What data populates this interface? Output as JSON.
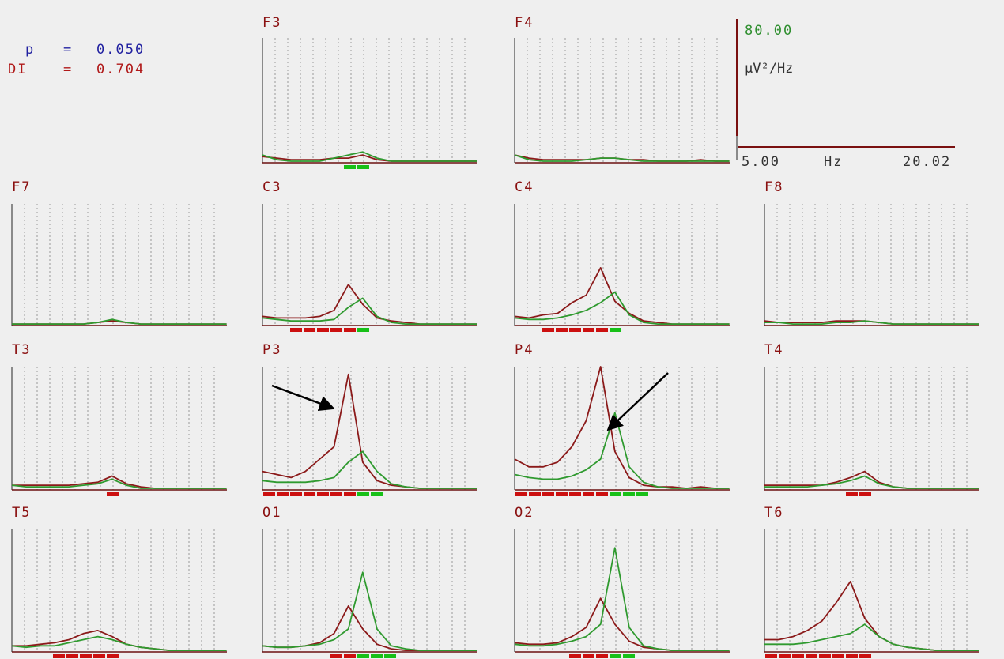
{
  "stats": {
    "p_label": "p",
    "p_equals": "=",
    "p_value": "0.050",
    "di_label": "DI",
    "di_equals": "=",
    "di_value": "0.704"
  },
  "scale": {
    "max_value": "80.00",
    "unit": "µV²/Hz",
    "x_min_label": "5.00",
    "x_unit": "Hz",
    "x_max_label": "20.02"
  },
  "colors": {
    "background": "#efefef",
    "series_a": "#8b1a1a",
    "series_b": "#2f9a2f",
    "significant_a": "#cc1010",
    "significant_b": "#18c018",
    "grid": "#9a9a9a",
    "axis": "#6b1010",
    "arrow": "#000000"
  },
  "chart_data": {
    "type": "line",
    "x": [
      5,
      6,
      7,
      8,
      9,
      10,
      11,
      12,
      13,
      14,
      15,
      16,
      17,
      18,
      19,
      20
    ],
    "xlim": [
      5.0,
      20.02
    ],
    "ylim": [
      0,
      80
    ],
    "xlabel": "Hz",
    "ylabel": "µV²/Hz",
    "grid": true,
    "panels": [
      {
        "label": "F3",
        "series": [
          {
            "values": [
              4,
              3,
              2,
              2,
              2,
              3,
              3,
              5,
              2,
              1,
              1,
              1,
              1,
              1,
              1,
              1
            ]
          },
          {
            "values": [
              5,
              2,
              1,
              1,
              1,
              3,
              5,
              7,
              3,
              1,
              1,
              1,
              1,
              1,
              1,
              1
            ]
          }
        ]
      },
      {
        "label": "F4",
        "series": [
          {
            "values": [
              5,
              3,
              2,
              2,
              2,
              2,
              3,
              3,
              2,
              2,
              1,
              1,
              1,
              2,
              1,
              1
            ]
          },
          {
            "values": [
              5,
              2,
              1,
              1,
              1,
              2,
              3,
              3,
              2,
              1,
              1,
              1,
              1,
              1,
              1,
              1
            ]
          }
        ]
      },
      {
        "label": "F7",
        "series": [
          {
            "values": [
              1,
              1,
              1,
              1,
              1,
              1,
              2,
              3,
              2,
              1,
              1,
              1,
              1,
              1,
              1,
              1
            ]
          },
          {
            "values": [
              1,
              1,
              1,
              1,
              1,
              1,
              2,
              4,
              2,
              1,
              1,
              1,
              1,
              1,
              1,
              1
            ]
          }
        ]
      },
      {
        "label": "C3",
        "series": [
          {
            "values": [
              6,
              5,
              5,
              5,
              6,
              10,
              27,
              14,
              5,
              3,
              2,
              1,
              1,
              1,
              1,
              1
            ]
          },
          {
            "values": [
              5,
              4,
              3,
              3,
              3,
              4,
              12,
              18,
              6,
              2,
              1,
              1,
              1,
              1,
              1,
              1
            ]
          }
        ]
      },
      {
        "label": "C4",
        "series": [
          {
            "values": [
              6,
              5,
              7,
              8,
              15,
              20,
              38,
              16,
              8,
              3,
              2,
              1,
              1,
              1,
              1,
              1
            ]
          },
          {
            "values": [
              5,
              4,
              4,
              5,
              7,
              10,
              15,
              22,
              7,
              2,
              1,
              1,
              1,
              1,
              1,
              1
            ]
          }
        ]
      },
      {
        "label": "F8",
        "series": [
          {
            "values": [
              3,
              2,
              2,
              2,
              2,
              3,
              3,
              3,
              2,
              1,
              1,
              1,
              1,
              1,
              1,
              1
            ]
          },
          {
            "values": [
              2,
              2,
              1,
              1,
              1,
              2,
              2,
              3,
              2,
              1,
              1,
              1,
              1,
              1,
              1,
              1
            ]
          }
        ]
      },
      {
        "label": "T3",
        "series": [
          {
            "values": [
              3,
              3,
              3,
              3,
              3,
              4,
              5,
              9,
              4,
              2,
              1,
              1,
              1,
              1,
              1,
              1
            ]
          },
          {
            "values": [
              3,
              2,
              2,
              2,
              2,
              3,
              4,
              7,
              3,
              1,
              1,
              1,
              1,
              1,
              1,
              1
            ]
          }
        ]
      },
      {
        "label": "P3",
        "series": [
          {
            "values": [
              12,
              10,
              8,
              12,
              20,
              28,
              75,
              18,
              6,
              3,
              2,
              1,
              1,
              1,
              1,
              1
            ]
          },
          {
            "values": [
              6,
              5,
              5,
              5,
              6,
              8,
              18,
              25,
              12,
              4,
              2,
              1,
              1,
              1,
              1,
              1
            ]
          }
        ]
      },
      {
        "label": "P4",
        "series": [
          {
            "values": [
              20,
              15,
              15,
              18,
              28,
              45,
              80,
              25,
              8,
              3,
              2,
              2,
              1,
              2,
              1,
              1
            ]
          },
          {
            "values": [
              10,
              8,
              7,
              7,
              9,
              13,
              20,
              50,
              15,
              5,
              2,
              1,
              1,
              1,
              1,
              1
            ]
          }
        ]
      },
      {
        "label": "T4",
        "series": [
          {
            "values": [
              3,
              3,
              3,
              3,
              3,
              5,
              8,
              12,
              5,
              2,
              1,
              1,
              1,
              1,
              1,
              1
            ]
          },
          {
            "values": [
              2,
              2,
              2,
              2,
              3,
              4,
              6,
              9,
              4,
              2,
              1,
              1,
              1,
              1,
              1,
              1
            ]
          }
        ]
      },
      {
        "label": "T5",
        "series": [
          {
            "values": [
              4,
              4,
              5,
              6,
              8,
              12,
              14,
              10,
              5,
              3,
              2,
              1,
              1,
              1,
              1,
              1
            ]
          },
          {
            "values": [
              4,
              3,
              4,
              4,
              6,
              8,
              10,
              8,
              5,
              3,
              2,
              1,
              1,
              1,
              1,
              1
            ]
          }
        ]
      },
      {
        "label": "O1",
        "series": [
          {
            "values": [
              4,
              3,
              3,
              4,
              6,
              12,
              30,
              15,
              5,
              2,
              1,
              1,
              1,
              1,
              1,
              1
            ]
          },
          {
            "values": [
              4,
              3,
              3,
              4,
              5,
              8,
              15,
              52,
              15,
              4,
              2,
              1,
              1,
              1,
              1,
              1
            ]
          }
        ]
      },
      {
        "label": "O2",
        "series": [
          {
            "values": [
              6,
              5,
              5,
              6,
              10,
              16,
              35,
              18,
              7,
              3,
              2,
              1,
              1,
              1,
              1,
              1
            ]
          },
          {
            "values": [
              5,
              4,
              4,
              5,
              7,
              10,
              18,
              68,
              16,
              4,
              2,
              1,
              1,
              1,
              1,
              1
            ]
          }
        ]
      },
      {
        "label": "T6",
        "series": [
          {
            "values": [
              8,
              8,
              10,
              14,
              20,
              32,
              46,
              22,
              10,
              5,
              3,
              2,
              1,
              1,
              1,
              1
            ]
          },
          {
            "values": [
              5,
              5,
              5,
              6,
              8,
              10,
              12,
              18,
              10,
              5,
              3,
              2,
              1,
              1,
              1,
              1
            ]
          }
        ]
      }
    ]
  }
}
